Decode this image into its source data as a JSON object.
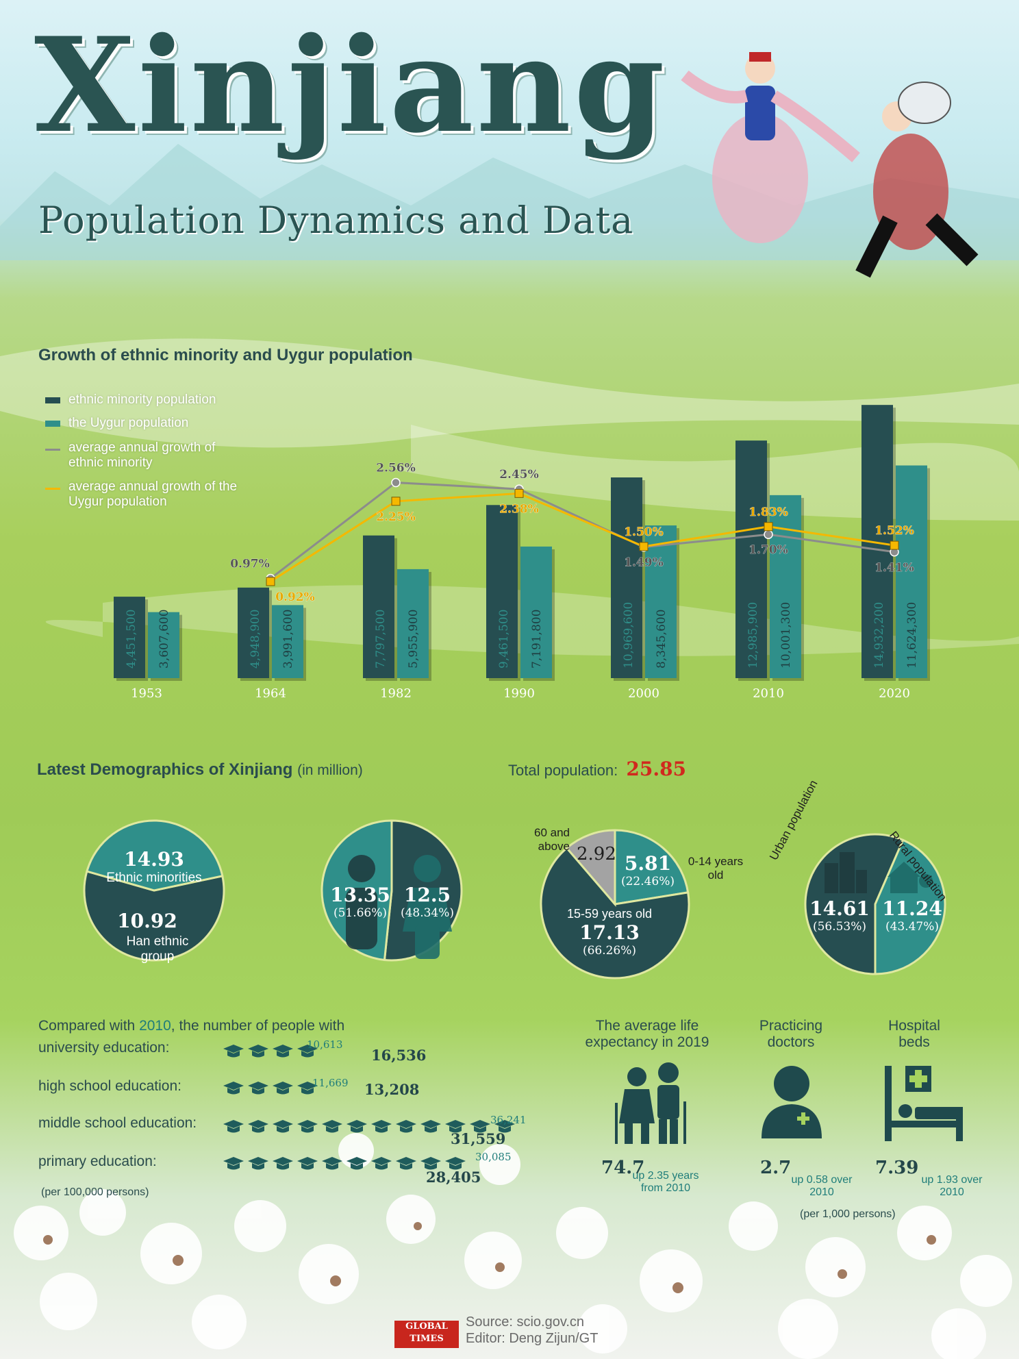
{
  "header": {
    "title": "Xinjiang",
    "subtitle": "Population Dynamics and Data"
  },
  "colors": {
    "ethnic_minority": "#264e51",
    "uygur": "#2f8f8a",
    "growth_minority": "#8c8c8c",
    "growth_uygur": "#f5b800",
    "accent_red": "#d0291e"
  },
  "growth_section": {
    "title": "Growth of ethnic minority and Uygur population",
    "legend": [
      {
        "label": "ethnic minority population",
        "color": "#264e51"
      },
      {
        "label": "the Uygur population",
        "color": "#2f8f8a"
      },
      {
        "label": "average annual growth of ethnic minority",
        "color": "#8c8c8c"
      },
      {
        "label": "average annual growth of the Uygur population",
        "color": "#f5b800"
      }
    ]
  },
  "chart_data": {
    "type": "bar",
    "title": "Growth of ethnic minority and Uygur population",
    "categories": [
      "1953",
      "1964",
      "1982",
      "1990",
      "2000",
      "2010",
      "2020"
    ],
    "series": [
      {
        "name": "ethnic minority population",
        "values": [
          4451500,
          4948900,
          7797500,
          9461500,
          10969600,
          12985900,
          14932200
        ],
        "labels": [
          "4,451,500",
          "4,948,900",
          "7,797,500",
          "9,461,500",
          "10,969,600",
          "12,985,900",
          "14,932,200"
        ]
      },
      {
        "name": "the Uygur population",
        "values": [
          3607600,
          3991600,
          5955900,
          7191800,
          8345600,
          10001300,
          11624300
        ],
        "labels": [
          "3,607,600",
          "3,991,600",
          "5,955,900",
          "7,191,800",
          "8,345,600",
          "10,001,300",
          "11,624,300"
        ]
      },
      {
        "name": "average annual growth of ethnic minority",
        "type": "line",
        "x": [
          "1964",
          "1982",
          "1990",
          "2000",
          "2010",
          "2020"
        ],
        "values": [
          0.97,
          2.56,
          2.45,
          1.49,
          1.7,
          1.41
        ],
        "labels": [
          "0.97%",
          "2.56%",
          "2.45%",
          "1.49%",
          "1.70%",
          "1.41%"
        ]
      },
      {
        "name": "average annual growth of the Uygur population",
        "type": "line",
        "x": [
          "1964",
          "1982",
          "1990",
          "2000",
          "2010",
          "2020"
        ],
        "values": [
          0.92,
          2.25,
          2.38,
          1.5,
          1.83,
          1.52
        ],
        "labels": [
          "0.92%",
          "2.25%",
          "2.38%",
          "1.50%",
          "1.83%",
          "1.52%"
        ]
      }
    ],
    "ylim": [
      0,
      15500000
    ],
    "growth_ylim": [
      0,
      4.2
    ],
    "grid": false,
    "legend_position": "top-left"
  },
  "demographics": {
    "title": "Latest Demographics of Xinjiang",
    "unit": "(in million)",
    "total_label": "Total population:",
    "total_value": "25.85",
    "pie_ethnic": {
      "minorities_value": "14.93",
      "minorities_label": "Ethnic minorities",
      "han_value": "10.92",
      "han_label": "Han ethnic group"
    },
    "pie_gender": {
      "male_value": "13.35",
      "male_pct": "(51.66%)",
      "female_value": "12.5",
      "female_pct": "(48.34%)"
    },
    "pie_age": {
      "old_label": "60 and above",
      "old_value": "2.92",
      "young_value": "5.81",
      "young_pct": "(22.46%)",
      "young_label": "0-14 years old",
      "mid_label": "15-59 years old",
      "mid_value": "17.13",
      "mid_pct": "(66.26%)"
    },
    "pie_urban": {
      "urban_label": "Urban population",
      "urban_value": "14.61",
      "urban_pct": "(56.53%)",
      "rural_label": "Rural population",
      "rural_value": "11.24",
      "rural_pct": "(43.47%)"
    },
    "pie_values": {
      "ethnic": [
        14.93,
        10.92
      ],
      "gender": [
        13.35,
        12.5
      ],
      "age": [
        5.81,
        17.13,
        2.92
      ],
      "urban": [
        14.61,
        11.24
      ]
    }
  },
  "education": {
    "intro_prefix": "Compared with",
    "intro_year": "2010",
    "intro_suffix": ", the number of people with",
    "note": "(per 100,000 persons)",
    "rows": [
      {
        "label": "university education:",
        "old": "10,613",
        "new": "16,536",
        "caps": 4
      },
      {
        "label": "high school education:",
        "old": "11,669",
        "new": "13,208",
        "caps": 4
      },
      {
        "label": "middle school education:",
        "old": "36,241",
        "new": "31,559",
        "caps": 12
      },
      {
        "label": "primary education:",
        "old": "30,085",
        "new": "28,405",
        "caps": 10
      }
    ]
  },
  "health": {
    "life": {
      "title": "The average life expectancy in 2019",
      "value": "74.7",
      "up": "up 2.35 years from 2010"
    },
    "doctors": {
      "title": "Practicing doctors",
      "value": "2.7",
      "up": "up 0.58 over 2010"
    },
    "beds": {
      "title": "Hospital beds",
      "value": "7.39",
      "up": "up 1.93 over 2010"
    },
    "note": "(per 1,000 persons)"
  },
  "footer": {
    "logo": "GLOBAL TIMES",
    "source": "Source: scio.gov.cn",
    "editor": "Editor: Deng Zijun/GT"
  }
}
